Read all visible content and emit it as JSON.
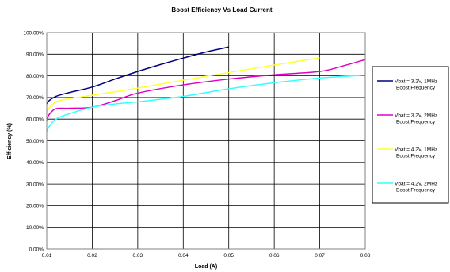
{
  "chart_data": {
    "type": "line",
    "title": "Boost Efficiency Vs Load Current",
    "xlabel": "Load (A)",
    "ylabel": "Efficiency (%)",
    "xlim": [
      0.01,
      0.08
    ],
    "ylim": [
      0,
      100
    ],
    "x_ticks": [
      "0.01",
      "0.02",
      "0.03",
      "0.04",
      "0.05",
      "0.06",
      "0.07",
      "0.08"
    ],
    "y_ticks": [
      "0.00%",
      "10.00%",
      "20.00%",
      "30.00%",
      "40.00%",
      "50.00%",
      "60.00%",
      "70.00%",
      "80.00%",
      "90.00%",
      "100.00%"
    ],
    "grid": true,
    "legend_position": "right",
    "series": [
      {
        "name": "Vbat = 3.2V, 1MHz Boost Frequency",
        "name_lines": [
          "Vbat = 3.2V, 1MHz",
          "Boost Frequency"
        ],
        "color": "#000080",
        "points": [
          [
            0.01,
            67
          ],
          [
            0.0105,
            68.5
          ],
          [
            0.012,
            70.5
          ],
          [
            0.015,
            72.3
          ],
          [
            0.02,
            74.8
          ],
          [
            0.025,
            78.5
          ],
          [
            0.03,
            82.0
          ],
          [
            0.035,
            85.2
          ],
          [
            0.04,
            88.2
          ],
          [
            0.045,
            91.0
          ],
          [
            0.05,
            93.3
          ]
        ]
      },
      {
        "name": "Vbat = 3.2V, 2MHz Boost Frequency",
        "name_lines": [
          "Vbat = 3.2V, 2MHz",
          "Boost Frequency"
        ],
        "color": "#e000c8",
        "points": [
          [
            0.01,
            59.5
          ],
          [
            0.0105,
            62
          ],
          [
            0.012,
            64.8
          ],
          [
            0.015,
            65
          ],
          [
            0.02,
            65.5
          ],
          [
            0.025,
            68.5
          ],
          [
            0.03,
            72
          ],
          [
            0.04,
            75.8
          ],
          [
            0.05,
            78.5
          ],
          [
            0.06,
            80.5
          ],
          [
            0.07,
            82
          ],
          [
            0.075,
            84.5
          ],
          [
            0.08,
            87.5
          ]
        ]
      },
      {
        "name": "Vbat = 4.2V, 1MHz Boost Frequency",
        "name_lines": [
          "Vbat = 4.2V, 1MHz",
          "Boost Frequency"
        ],
        "color": "#ffff33",
        "points": [
          [
            0.01,
            63.5
          ],
          [
            0.0105,
            65
          ],
          [
            0.012,
            68
          ],
          [
            0.015,
            69.5
          ],
          [
            0.02,
            71
          ],
          [
            0.03,
            74.3
          ],
          [
            0.04,
            78
          ],
          [
            0.05,
            81.5
          ],
          [
            0.06,
            85
          ],
          [
            0.07,
            88.3
          ]
        ]
      },
      {
        "name": "Vbat = 4.2V, 2MHz Boost Frequency",
        "name_lines": [
          "Vbat = 4.2V, 2MHz",
          "Boost Frequency"
        ],
        "color": "#33ffff",
        "points": [
          [
            0.01,
            54
          ],
          [
            0.0105,
            56.5
          ],
          [
            0.012,
            60
          ],
          [
            0.015,
            62.5
          ],
          [
            0.02,
            65.5
          ],
          [
            0.025,
            67
          ],
          [
            0.03,
            68
          ],
          [
            0.04,
            70.5
          ],
          [
            0.05,
            74
          ],
          [
            0.06,
            76.8
          ],
          [
            0.07,
            79
          ],
          [
            0.08,
            80.3
          ]
        ]
      }
    ]
  }
}
